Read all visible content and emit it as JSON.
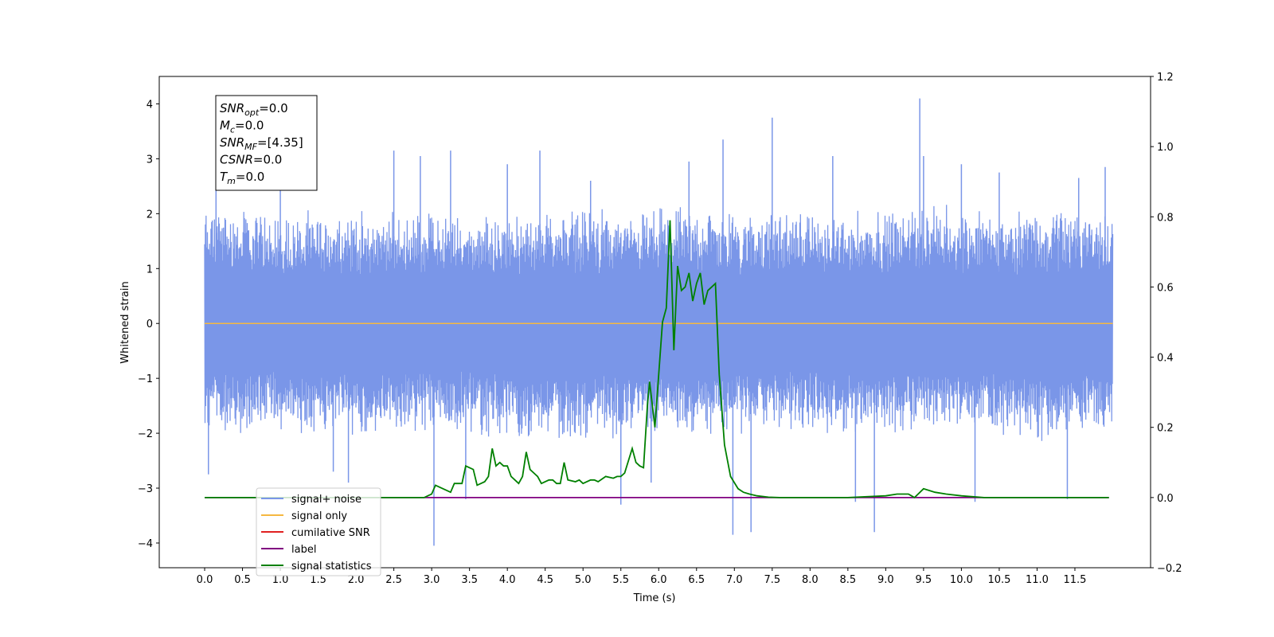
{
  "chart_data": {
    "type": "line",
    "title": "",
    "xlabel": "Time (s)",
    "ylabel": "Whitened strain",
    "xlim": [
      -0.6,
      12.5
    ],
    "ylim": [
      -4.45,
      4.5
    ],
    "y2lim": [
      -0.2,
      1.2
    ],
    "x_ticks": [
      "0.0",
      "0.5",
      "1.0",
      "1.5",
      "2.0",
      "2.5",
      "3.0",
      "3.5",
      "4.0",
      "4.5",
      "5.0",
      "5.5",
      "6.0",
      "6.5",
      "7.0",
      "7.5",
      "8.0",
      "8.5",
      "9.0",
      "9.5",
      "10.0",
      "10.5",
      "11.0",
      "11.5"
    ],
    "y_ticks": [
      "−4",
      "−3",
      "−2",
      "−1",
      "0",
      "1",
      "2",
      "3",
      "4"
    ],
    "y2_ticks": [
      "−0.2",
      "0.0",
      "0.2",
      "0.4",
      "0.6",
      "0.8",
      "1.0",
      "1.2"
    ],
    "grid": false,
    "legend_position": "bottom-left",
    "annotation": [
      {
        "sym": "SNR",
        "sub": "opt",
        "val": "=0.0"
      },
      {
        "sym": "M",
        "sub": "c",
        "val": "=0.0"
      },
      {
        "sym": "SNR",
        "sub": "MF",
        "val": "=[4.35]"
      },
      {
        "sym": "CSNR",
        "sub": "",
        "val": "=0.0"
      },
      {
        "sym": "T",
        "sub": "m",
        "val": "=0.0"
      }
    ],
    "series": [
      {
        "name": "signal+ noise",
        "color": "#7a96e8",
        "axis": "left",
        "x_range": [
          0.0,
          12.0
        ],
        "envelope_upper": [
          2.3,
          2.2,
          2.1,
          2.1,
          2.1,
          2.1,
          2.1,
          2.1,
          2.0,
          2.1,
          2.2,
          2.1,
          2.2,
          2.2,
          2.1,
          2.1,
          2.2,
          2.1,
          2.2,
          2.2,
          2.2,
          2.1,
          2.2,
          2.2,
          2.1
        ],
        "envelope_lower": [
          -2.0,
          -2.1,
          -2.0,
          -2.1,
          -2.2,
          -2.1,
          -2.1,
          -2.1,
          -2.2,
          -2.3,
          -2.2,
          -2.1,
          -2.0,
          -2.2,
          -2.1,
          -2.0,
          -2.0,
          -2.1,
          -2.1,
          -2.1,
          -2.1,
          -2.1,
          -2.2,
          -2.2,
          -2.0
        ],
        "spikes": [
          [
            0.05,
            -2.75
          ],
          [
            0.15,
            2.7
          ],
          [
            1.0,
            2.6
          ],
          [
            1.7,
            -2.7
          ],
          [
            1.9,
            -2.9
          ],
          [
            2.5,
            3.15
          ],
          [
            2.85,
            3.05
          ],
          [
            3.03,
            -4.05
          ],
          [
            3.25,
            3.15
          ],
          [
            3.45,
            -3.2
          ],
          [
            4.0,
            2.9
          ],
          [
            4.43,
            3.15
          ],
          [
            5.1,
            2.6
          ],
          [
            5.5,
            -3.3
          ],
          [
            5.9,
            -2.9
          ],
          [
            6.4,
            2.95
          ],
          [
            6.85,
            3.35
          ],
          [
            6.98,
            -3.85
          ],
          [
            7.22,
            -3.8
          ],
          [
            7.5,
            3.75
          ],
          [
            8.3,
            3.05
          ],
          [
            8.6,
            -3.25
          ],
          [
            8.85,
            -3.8
          ],
          [
            9.45,
            4.1
          ],
          [
            9.5,
            3.05
          ],
          [
            10.0,
            2.9
          ],
          [
            10.18,
            -3.25
          ],
          [
            10.5,
            2.75
          ],
          [
            11.4,
            -3.2
          ],
          [
            11.55,
            2.65
          ],
          [
            11.9,
            2.85
          ]
        ]
      },
      {
        "name": "signal only",
        "color": "#f5b841",
        "axis": "left",
        "x": [
          0.0,
          12.0
        ],
        "y": [
          0.0,
          0.0
        ]
      },
      {
        "name": "cumilative SNR",
        "color": "#e02020",
        "axis": "left",
        "x": [],
        "y": []
      },
      {
        "name": "label",
        "color": "#800080",
        "axis": "right",
        "x": [
          0.0,
          11.95
        ],
        "y": [
          0.0,
          0.0
        ]
      },
      {
        "name": "signal statistics",
        "color": "#008000",
        "axis": "right",
        "x": [
          0.0,
          2.9,
          3.0,
          3.05,
          3.15,
          3.25,
          3.3,
          3.4,
          3.45,
          3.55,
          3.6,
          3.7,
          3.75,
          3.8,
          3.85,
          3.9,
          3.95,
          4.0,
          4.05,
          4.1,
          4.15,
          4.2,
          4.25,
          4.3,
          4.35,
          4.4,
          4.45,
          4.55,
          4.6,
          4.65,
          4.7,
          4.75,
          4.8,
          4.9,
          4.95,
          5.0,
          5.1,
          5.15,
          5.2,
          5.3,
          5.4,
          5.45,
          5.5,
          5.55,
          5.65,
          5.7,
          5.75,
          5.8,
          5.85,
          5.88,
          5.95,
          6.05,
          6.1,
          6.15,
          6.2,
          6.25,
          6.3,
          6.35,
          6.4,
          6.45,
          6.5,
          6.55,
          6.6,
          6.65,
          6.7,
          6.75,
          6.8,
          6.87,
          6.95,
          7.05,
          7.12,
          7.2,
          7.3,
          7.45,
          7.6,
          7.8,
          8.5,
          9.0,
          9.15,
          9.3,
          9.38,
          9.5,
          9.65,
          9.8,
          10.0,
          10.3,
          11.0,
          11.95
        ],
        "y": [
          0.0,
          0.0,
          0.01,
          0.035,
          0.025,
          0.015,
          0.04,
          0.04,
          0.09,
          0.08,
          0.035,
          0.045,
          0.06,
          0.14,
          0.09,
          0.1,
          0.09,
          0.09,
          0.06,
          0.05,
          0.04,
          0.06,
          0.13,
          0.08,
          0.07,
          0.06,
          0.04,
          0.05,
          0.05,
          0.04,
          0.04,
          0.1,
          0.05,
          0.045,
          0.05,
          0.04,
          0.05,
          0.05,
          0.045,
          0.06,
          0.055,
          0.06,
          0.06,
          0.07,
          0.14,
          0.1,
          0.09,
          0.085,
          0.26,
          0.33,
          0.2,
          0.5,
          0.54,
          0.79,
          0.42,
          0.66,
          0.59,
          0.6,
          0.64,
          0.56,
          0.61,
          0.64,
          0.55,
          0.59,
          0.6,
          0.61,
          0.35,
          0.15,
          0.06,
          0.025,
          0.015,
          0.01,
          0.005,
          0.001,
          0.0,
          0.0,
          0.0,
          0.005,
          0.01,
          0.01,
          0.0,
          0.025,
          0.015,
          0.01,
          0.005,
          0.0,
          0.0,
          0.0
        ]
      }
    ]
  }
}
